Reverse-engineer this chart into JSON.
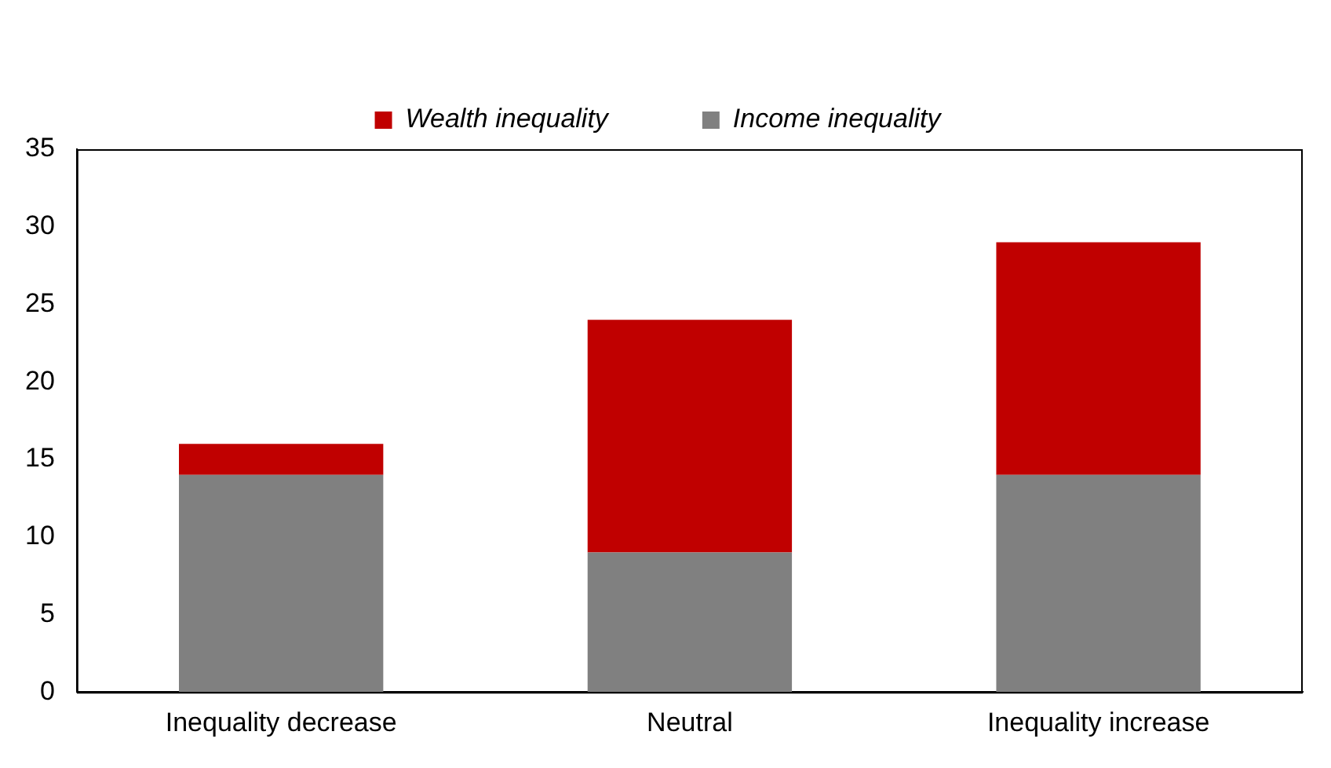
{
  "chart_data": {
    "type": "bar",
    "stacked": true,
    "categories": [
      "Inequality decrease",
      "Neutral",
      "Inequality increase"
    ],
    "series": [
      {
        "name": "Income inequality",
        "color": "#808080",
        "values": [
          14,
          9,
          14
        ]
      },
      {
        "name": "Wealth inequality",
        "color": "#c00000",
        "values": [
          2,
          15,
          15
        ]
      }
    ],
    "ylim": [
      0,
      35
    ],
    "yticks": [
      0,
      5,
      10,
      15,
      20,
      25,
      30,
      35
    ],
    "grid": false,
    "legend": "top"
  }
}
